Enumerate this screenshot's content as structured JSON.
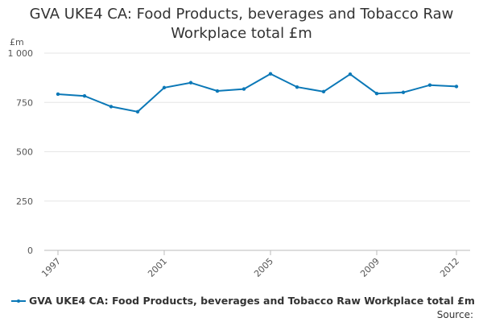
{
  "chart_data": {
    "type": "line",
    "title_lines": [
      "GVA UKE4 CA: Food Products, beverages and Tobacco Raw",
      "Workplace total £m"
    ],
    "ylabel": "£m",
    "xlabel": "",
    "ylim": [
      0,
      1000
    ],
    "yticks": [
      0,
      250,
      500,
      750,
      1000
    ],
    "ytick_labels": [
      "0",
      "250",
      "500",
      "750",
      "1 000"
    ],
    "x_tick_years": [
      1997,
      2001,
      2005,
      2009,
      2012
    ],
    "grid": true,
    "legend_position": "bottom-left",
    "series": [
      {
        "name": "GVA UKE4 CA: Food Products, beverages and Tobacco Raw Workplace total £m",
        "color": "#0b78b7",
        "x": [
          1997,
          1998,
          1999,
          2000,
          2001,
          2002,
          2003,
          2004,
          2005,
          2006,
          2007,
          2008,
          2009,
          2010,
          2011,
          2012
        ],
        "values": [
          792,
          783,
          729,
          703,
          825,
          850,
          808,
          818,
          895,
          828,
          805,
          893,
          795,
          801,
          838,
          831
        ]
      }
    ]
  },
  "source_label": "Source:"
}
